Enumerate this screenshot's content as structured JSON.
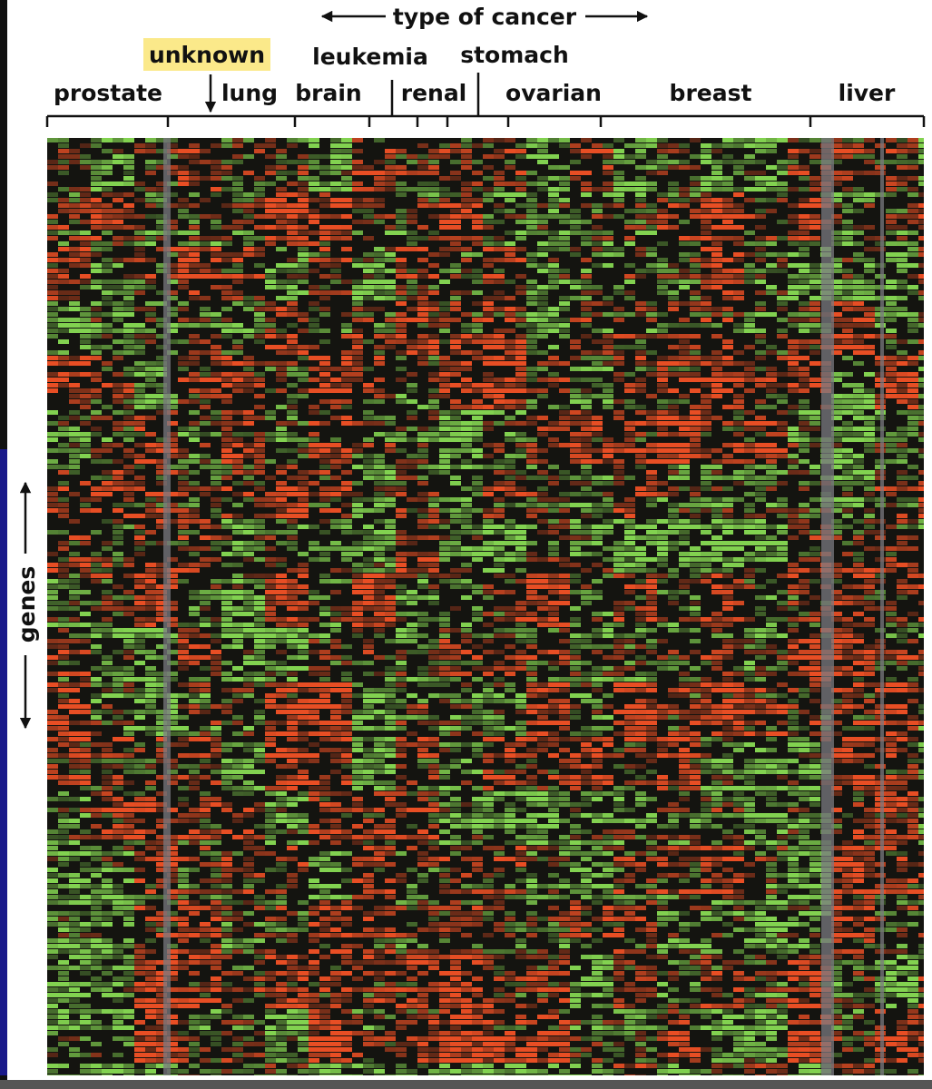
{
  "header": {
    "title": "type of cancer"
  },
  "labels": {
    "highlighted": "unknown",
    "top": [
      "leukemia",
      "stomach"
    ],
    "bottom": [
      "prostate",
      "lung",
      "brain",
      "renal",
      "ovarian",
      "breast",
      "liver"
    ]
  },
  "axis": {
    "y_label": "genes"
  }
}
